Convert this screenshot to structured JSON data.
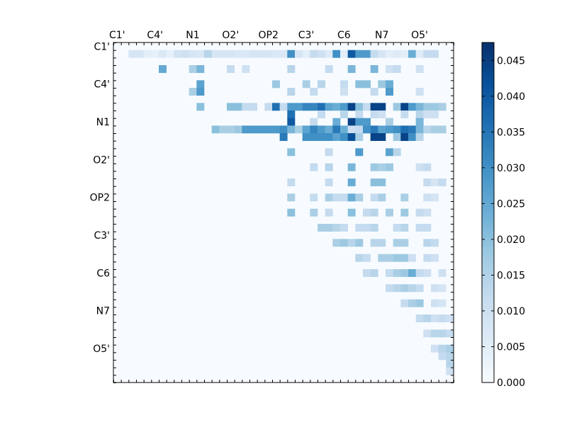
{
  "chart_data": {
    "type": "heatmap",
    "title": "",
    "xlabel": "",
    "ylabel": "",
    "n": 45,
    "x_tick_labels": [
      "C1'",
      "C4'",
      "N1",
      "O2'",
      "OP2",
      "C3'",
      "C6",
      "N7",
      "O5'"
    ],
    "y_tick_labels": [
      "C1'",
      "C4'",
      "N1",
      "O2'",
      "OP2",
      "C3'",
      "C6",
      "N7",
      "O5'"
    ],
    "colorbar": {
      "vmin": 0.0,
      "vmax": 0.0475,
      "colormap": "Blues",
      "ticks": [
        0.0,
        0.005,
        0.01,
        0.015,
        0.02,
        0.025,
        0.03,
        0.035,
        0.04,
        0.045
      ],
      "tick_labels": [
        "0.000",
        "0.005",
        "0.010",
        "0.015",
        "0.020",
        "0.025",
        "0.030",
        "0.035",
        "0.040",
        "0.045"
      ]
    },
    "matrix_note": "upper triangle values; cells on and below the diagonal are 0",
    "cells": [
      [
        1,
        2,
        0.008
      ],
      [
        1,
        3,
        0.008
      ],
      [
        1,
        4,
        0.005
      ],
      [
        1,
        5,
        0.004
      ],
      [
        1,
        6,
        0.007
      ],
      [
        1,
        7,
        0.004
      ],
      [
        1,
        8,
        0.009
      ],
      [
        1,
        9,
        0.01
      ],
      [
        1,
        10,
        0.008
      ],
      [
        1,
        11,
        0.007
      ],
      [
        1,
        12,
        0.014
      ],
      [
        1,
        13,
        0.008
      ],
      [
        1,
        14,
        0.008
      ],
      [
        1,
        15,
        0.008
      ],
      [
        1,
        16,
        0.007
      ],
      [
        1,
        17,
        0.007
      ],
      [
        1,
        18,
        0.008
      ],
      [
        1,
        19,
        0.008
      ],
      [
        1,
        20,
        0.008
      ],
      [
        1,
        21,
        0.007
      ],
      [
        1,
        22,
        0.007
      ],
      [
        1,
        23,
        0.03
      ],
      [
        1,
        24,
        0.008
      ],
      [
        1,
        25,
        0.005
      ],
      [
        1,
        26,
        0.012
      ],
      [
        1,
        27,
        0.01
      ],
      [
        1,
        28,
        0.006
      ],
      [
        1,
        29,
        0.03
      ],
      [
        1,
        30,
        0.005
      ],
      [
        1,
        31,
        0.04
      ],
      [
        1,
        32,
        0.028
      ],
      [
        1,
        33,
        0.028
      ],
      [
        1,
        34,
        0.012
      ],
      [
        1,
        35,
        0.008
      ],
      [
        1,
        36,
        0.005
      ],
      [
        1,
        37,
        0.006
      ],
      [
        1,
        38,
        0.005
      ],
      [
        1,
        39,
        0.024
      ],
      [
        1,
        40,
        0.006
      ],
      [
        1,
        41,
        0.012
      ],
      [
        1,
        42,
        0.012
      ],
      [
        3,
        6,
        0.025
      ],
      [
        3,
        10,
        0.016
      ],
      [
        3,
        11,
        0.022
      ],
      [
        3,
        15,
        0.012
      ],
      [
        3,
        17,
        0.01
      ],
      [
        3,
        23,
        0.014
      ],
      [
        3,
        28,
        0.012
      ],
      [
        3,
        31,
        0.022
      ],
      [
        3,
        34,
        0.022
      ],
      [
        3,
        36,
        0.01
      ],
      [
        3,
        37,
        0.012
      ],
      [
        3,
        40,
        0.01
      ],
      [
        5,
        11,
        0.026
      ],
      [
        5,
        21,
        0.018
      ],
      [
        5,
        25,
        0.016
      ],
      [
        5,
        27,
        0.014
      ],
      [
        5,
        30,
        0.012
      ],
      [
        5,
        32,
        0.02
      ],
      [
        5,
        33,
        0.02
      ],
      [
        5,
        35,
        0.018
      ],
      [
        5,
        36,
        0.024
      ],
      [
        6,
        10,
        0.016
      ],
      [
        6,
        11,
        0.028
      ],
      [
        6,
        23,
        0.014
      ],
      [
        6,
        26,
        0.012
      ],
      [
        6,
        30,
        0.01
      ],
      [
        6,
        34,
        0.012
      ],
      [
        6,
        36,
        0.028
      ],
      [
        6,
        40,
        0.01
      ],
      [
        8,
        11,
        0.02
      ],
      [
        8,
        15,
        0.02
      ],
      [
        8,
        16,
        0.02
      ],
      [
        8,
        17,
        0.012
      ],
      [
        8,
        18,
        0.012
      ],
      [
        8,
        20,
        0.012
      ],
      [
        8,
        21,
        0.036
      ],
      [
        8,
        22,
        0.012
      ],
      [
        8,
        23,
        0.028
      ],
      [
        8,
        24,
        0.028
      ],
      [
        8,
        25,
        0.032
      ],
      [
        8,
        26,
        0.032
      ],
      [
        8,
        27,
        0.036
      ],
      [
        8,
        28,
        0.026
      ],
      [
        8,
        29,
        0.024
      ],
      [
        8,
        30,
        0.028
      ],
      [
        8,
        31,
        0.044
      ],
      [
        8,
        32,
        0.02
      ],
      [
        8,
        33,
        0.012
      ],
      [
        8,
        34,
        0.044
      ],
      [
        8,
        35,
        0.044
      ],
      [
        8,
        37,
        0.018
      ],
      [
        8,
        38,
        0.044
      ],
      [
        8,
        39,
        0.028
      ],
      [
        8,
        40,
        0.022
      ],
      [
        8,
        41,
        0.018
      ],
      [
        8,
        42,
        0.018
      ],
      [
        8,
        43,
        0.016
      ],
      [
        9,
        23,
        0.036
      ],
      [
        9,
        27,
        0.012
      ],
      [
        9,
        30,
        0.014
      ],
      [
        9,
        32,
        0.012
      ],
      [
        9,
        34,
        0.012
      ],
      [
        9,
        35,
        0.01
      ],
      [
        9,
        38,
        0.012
      ],
      [
        9,
        40,
        0.014
      ],
      [
        9,
        41,
        0.01
      ],
      [
        9,
        42,
        0.01
      ],
      [
        10,
        23,
        0.04
      ],
      [
        10,
        26,
        0.012
      ],
      [
        10,
        29,
        0.024
      ],
      [
        10,
        31,
        0.044
      ],
      [
        10,
        32,
        0.028
      ],
      [
        10,
        33,
        0.028
      ],
      [
        10,
        36,
        0.016
      ],
      [
        10,
        40,
        0.022
      ],
      [
        11,
        13,
        0.02
      ],
      [
        11,
        14,
        0.016
      ],
      [
        11,
        15,
        0.016
      ],
      [
        11,
        16,
        0.018
      ],
      [
        11,
        17,
        0.028
      ],
      [
        11,
        18,
        0.028
      ],
      [
        11,
        19,
        0.028
      ],
      [
        11,
        20,
        0.028
      ],
      [
        11,
        21,
        0.028
      ],
      [
        11,
        22,
        0.03
      ],
      [
        11,
        23,
        0.022
      ],
      [
        11,
        24,
        0.016
      ],
      [
        11,
        25,
        0.026
      ],
      [
        11,
        26,
        0.032
      ],
      [
        11,
        27,
        0.028
      ],
      [
        11,
        28,
        0.024
      ],
      [
        11,
        29,
        0.034
      ],
      [
        11,
        30,
        0.024
      ],
      [
        11,
        31,
        0.01
      ],
      [
        11,
        32,
        0.012
      ],
      [
        11,
        33,
        0.03
      ],
      [
        11,
        34,
        0.034
      ],
      [
        11,
        35,
        0.026
      ],
      [
        11,
        36,
        0.028
      ],
      [
        11,
        37,
        0.03
      ],
      [
        11,
        38,
        0.036
      ],
      [
        11,
        39,
        0.034
      ],
      [
        11,
        40,
        0.022
      ],
      [
        11,
        41,
        0.014
      ],
      [
        11,
        42,
        0.016
      ],
      [
        11,
        43,
        0.016
      ],
      [
        12,
        22,
        0.034
      ],
      [
        12,
        25,
        0.03
      ],
      [
        12,
        26,
        0.03
      ],
      [
        12,
        27,
        0.03
      ],
      [
        12,
        28,
        0.03
      ],
      [
        12,
        29,
        0.026
      ],
      [
        12,
        30,
        0.03
      ],
      [
        12,
        31,
        0.042
      ],
      [
        12,
        32,
        0.016
      ],
      [
        12,
        34,
        0.044
      ],
      [
        12,
        35,
        0.044
      ],
      [
        12,
        37,
        0.018
      ],
      [
        12,
        38,
        0.044
      ],
      [
        12,
        39,
        0.03
      ],
      [
        12,
        40,
        0.014
      ],
      [
        14,
        23,
        0.02
      ],
      [
        14,
        28,
        0.012
      ],
      [
        14,
        32,
        0.028
      ],
      [
        14,
        36,
        0.026
      ],
      [
        14,
        37,
        0.014
      ],
      [
        16,
        26,
        0.012
      ],
      [
        16,
        28,
        0.014
      ],
      [
        16,
        31,
        0.022
      ],
      [
        16,
        34,
        0.018
      ],
      [
        16,
        35,
        0.016
      ],
      [
        16,
        36,
        0.018
      ],
      [
        16,
        40,
        0.01
      ],
      [
        16,
        41,
        0.012
      ],
      [
        18,
        23,
        0.012
      ],
      [
        18,
        28,
        0.012
      ],
      [
        18,
        31,
        0.024
      ],
      [
        18,
        34,
        0.02
      ],
      [
        18,
        35,
        0.02
      ],
      [
        18,
        41,
        0.012
      ],
      [
        18,
        42,
        0.008
      ],
      [
        18,
        43,
        0.012
      ],
      [
        20,
        23,
        0.016
      ],
      [
        20,
        26,
        0.012
      ],
      [
        20,
        28,
        0.016
      ],
      [
        20,
        29,
        0.012
      ],
      [
        20,
        30,
        0.012
      ],
      [
        20,
        31,
        0.024
      ],
      [
        20,
        32,
        0.016
      ],
      [
        20,
        34,
        0.012
      ],
      [
        20,
        35,
        0.016
      ],
      [
        20,
        38,
        0.016
      ],
      [
        20,
        41,
        0.01
      ],
      [
        20,
        42,
        0.008
      ],
      [
        22,
        23,
        0.02
      ],
      [
        22,
        26,
        0.016
      ],
      [
        22,
        28,
        0.012
      ],
      [
        22,
        31,
        0.02
      ],
      [
        22,
        33,
        0.012
      ],
      [
        22,
        34,
        0.014
      ],
      [
        22,
        36,
        0.016
      ],
      [
        22,
        38,
        0.018
      ],
      [
        22,
        40,
        0.012
      ],
      [
        22,
        41,
        0.01
      ],
      [
        24,
        27,
        0.016
      ],
      [
        24,
        28,
        0.016
      ],
      [
        24,
        29,
        0.014
      ],
      [
        24,
        30,
        0.012
      ],
      [
        24,
        32,
        0.012
      ],
      [
        24,
        33,
        0.012
      ],
      [
        24,
        34,
        0.014
      ],
      [
        24,
        37,
        0.012
      ],
      [
        24,
        38,
        0.014
      ],
      [
        24,
        40,
        0.012
      ],
      [
        24,
        41,
        0.012
      ],
      [
        26,
        29,
        0.016
      ],
      [
        26,
        30,
        0.018
      ],
      [
        26,
        31,
        0.014
      ],
      [
        26,
        32,
        0.018
      ],
      [
        26,
        34,
        0.014
      ],
      [
        26,
        35,
        0.014
      ],
      [
        26,
        37,
        0.016
      ],
      [
        26,
        38,
        0.016
      ],
      [
        26,
        41,
        0.014
      ],
      [
        26,
        42,
        0.012
      ],
      [
        28,
        32,
        0.014
      ],
      [
        28,
        33,
        0.012
      ],
      [
        28,
        35,
        0.016
      ],
      [
        28,
        36,
        0.016
      ],
      [
        28,
        37,
        0.018
      ],
      [
        28,
        38,
        0.018
      ],
      [
        28,
        39,
        0.01
      ],
      [
        28,
        41,
        0.012
      ],
      [
        28,
        42,
        0.01
      ],
      [
        30,
        33,
        0.012
      ],
      [
        30,
        34,
        0.014
      ],
      [
        30,
        36,
        0.012
      ],
      [
        30,
        37,
        0.016
      ],
      [
        30,
        38,
        0.018
      ],
      [
        30,
        39,
        0.024
      ],
      [
        30,
        40,
        0.012
      ],
      [
        30,
        41,
        0.01
      ],
      [
        30,
        43,
        0.01
      ],
      [
        32,
        36,
        0.012
      ],
      [
        32,
        37,
        0.014
      ],
      [
        32,
        38,
        0.016
      ],
      [
        32,
        39,
        0.014
      ],
      [
        32,
        40,
        0.012
      ],
      [
        32,
        42,
        0.01
      ],
      [
        32,
        43,
        0.008
      ],
      [
        34,
        38,
        0.012
      ],
      [
        34,
        39,
        0.016
      ],
      [
        34,
        40,
        0.018
      ],
      [
        34,
        42,
        0.01
      ],
      [
        34,
        43,
        0.008
      ],
      [
        36,
        40,
        0.012
      ],
      [
        36,
        41,
        0.014
      ],
      [
        36,
        42,
        0.01
      ],
      [
        36,
        43,
        0.012
      ],
      [
        36,
        44,
        0.01
      ],
      [
        38,
        41,
        0.01
      ],
      [
        38,
        42,
        0.014
      ],
      [
        38,
        43,
        0.014
      ],
      [
        38,
        44,
        0.012
      ],
      [
        40,
        42,
        0.01
      ],
      [
        40,
        43,
        0.014
      ],
      [
        40,
        44,
        0.016
      ],
      [
        41,
        43,
        0.012
      ],
      [
        41,
        44,
        0.014
      ],
      [
        42,
        44,
        0.014
      ],
      [
        43,
        44,
        0.01
      ]
    ]
  }
}
